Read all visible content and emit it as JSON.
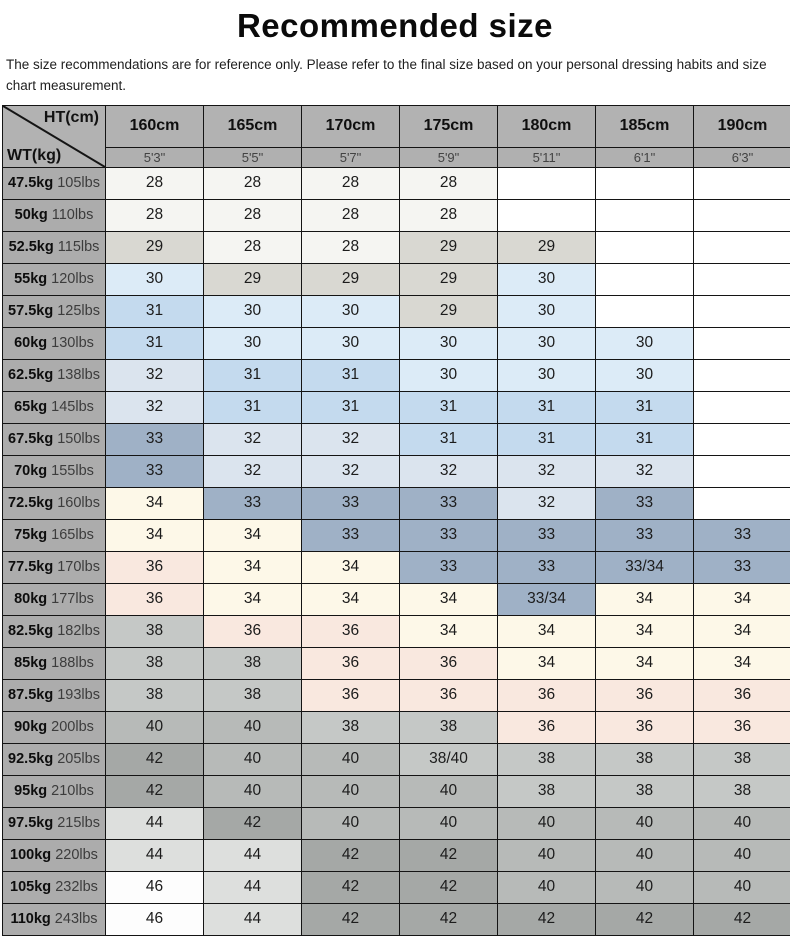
{
  "page": {
    "title": "Recommended size",
    "subtitle": "The size recommendations are for reference only. Please refer to the final size based on your personal dressing habits and size chart measurement."
  },
  "table": {
    "corner": {
      "top_label": "HT(cm)",
      "bottom_label": "WT(kg)"
    },
    "columns": [
      {
        "cm": "160cm",
        "ft": "5'3\""
      },
      {
        "cm": "165cm",
        "ft": "5'5\""
      },
      {
        "cm": "170cm",
        "ft": "5'7\""
      },
      {
        "cm": "175cm",
        "ft": "5'9\""
      },
      {
        "cm": "180cm",
        "ft": "5'11\""
      },
      {
        "cm": "185cm",
        "ft": "6'1\""
      },
      {
        "cm": "190cm",
        "ft": "6'3\""
      }
    ],
    "rows": [
      {
        "kg": "47.5kg",
        "lbs": "105lbs",
        "values": [
          "28",
          "28",
          "28",
          "28",
          "",
          "",
          ""
        ]
      },
      {
        "kg": "50kg",
        "lbs": "110lbs",
        "values": [
          "28",
          "28",
          "28",
          "28",
          "",
          "",
          ""
        ]
      },
      {
        "kg": "52.5kg",
        "lbs": "115lbs",
        "values": [
          "29",
          "28",
          "28",
          "29",
          "29",
          "",
          ""
        ]
      },
      {
        "kg": "55kg",
        "lbs": "120lbs",
        "values": [
          "30",
          "29",
          "29",
          "29",
          "30",
          "",
          ""
        ]
      },
      {
        "kg": "57.5kg",
        "lbs": "125lbs",
        "values": [
          "31",
          "30",
          "30",
          "29",
          "30",
          "",
          ""
        ]
      },
      {
        "kg": "60kg",
        "lbs": "130lbs",
        "values": [
          "31",
          "30",
          "30",
          "30",
          "30",
          "30",
          ""
        ]
      },
      {
        "kg": "62.5kg",
        "lbs": "138lbs",
        "values": [
          "32",
          "31",
          "31",
          "30",
          "30",
          "30",
          ""
        ]
      },
      {
        "kg": "65kg",
        "lbs": "145lbs",
        "values": [
          "32",
          "31",
          "31",
          "31",
          "31",
          "31",
          ""
        ]
      },
      {
        "kg": "67.5kg",
        "lbs": "150lbs",
        "values": [
          "33",
          "32",
          "32",
          "31",
          "31",
          "31",
          ""
        ]
      },
      {
        "kg": "70kg",
        "lbs": "155lbs",
        "values": [
          "33",
          "32",
          "32",
          "32",
          "32",
          "32",
          ""
        ]
      },
      {
        "kg": "72.5kg",
        "lbs": "160lbs",
        "values": [
          "34",
          "33",
          "33",
          "33",
          "32",
          "33",
          ""
        ]
      },
      {
        "kg": "75kg",
        "lbs": "165lbs",
        "values": [
          "34",
          "34",
          "33",
          "33",
          "33",
          "33",
          "33"
        ]
      },
      {
        "kg": "77.5kg",
        "lbs": "170lbs",
        "values": [
          "36",
          "34",
          "34",
          "33",
          "33",
          "33/34",
          "33"
        ]
      },
      {
        "kg": "80kg",
        "lbs": "177lbs",
        "values": [
          "36",
          "34",
          "34",
          "34",
          "33/34",
          "34",
          "34"
        ]
      },
      {
        "kg": "82.5kg",
        "lbs": "182lbs",
        "values": [
          "38",
          "36",
          "36",
          "34",
          "34",
          "34",
          "34"
        ]
      },
      {
        "kg": "85kg",
        "lbs": "188lbs",
        "values": [
          "38",
          "38",
          "36",
          "36",
          "34",
          "34",
          "34"
        ]
      },
      {
        "kg": "87.5kg",
        "lbs": "193lbs",
        "values": [
          "38",
          "38",
          "36",
          "36",
          "36",
          "36",
          "36"
        ]
      },
      {
        "kg": "90kg",
        "lbs": "200lbs",
        "values": [
          "40",
          "40",
          "38",
          "38",
          "36",
          "36",
          "36"
        ]
      },
      {
        "kg": "92.5kg",
        "lbs": "205lbs",
        "values": [
          "42",
          "40",
          "40",
          "38/40",
          "38",
          "38",
          "38"
        ]
      },
      {
        "kg": "95kg",
        "lbs": "210lbs",
        "values": [
          "42",
          "40",
          "40",
          "40",
          "38",
          "38",
          "38"
        ]
      },
      {
        "kg": "97.5kg",
        "lbs": "215lbs",
        "values": [
          "44",
          "42",
          "40",
          "40",
          "40",
          "40",
          "40"
        ]
      },
      {
        "kg": "100kg",
        "lbs": "220lbs",
        "values": [
          "44",
          "44",
          "42",
          "42",
          "40",
          "40",
          "40"
        ]
      },
      {
        "kg": "105kg",
        "lbs": "232lbs",
        "values": [
          "46",
          "44",
          "42",
          "42",
          "40",
          "40",
          "40"
        ]
      },
      {
        "kg": "110kg",
        "lbs": "243lbs",
        "values": [
          "46",
          "44",
          "42",
          "42",
          "42",
          "42",
          "42"
        ]
      }
    ],
    "value_colors": {
      "": "#ffffff",
      "28": "#f5f5f2",
      "29": "#d9d8d2",
      "30": "#dcebf7",
      "31": "#c4daee",
      "32": "#dbe4ee",
      "33": "#9fb1c6",
      "33/34": "#9fb1c6",
      "34": "#fdf8e8",
      "36": "#f9e8df",
      "38": "#c5c8c6",
      "38/40": "#c5c8c6",
      "40": "#b7bab8",
      "42": "#a5a8a6",
      "44": "#dddfdd",
      "46": "#fdfdfd"
    },
    "styles": {
      "header_bg": "#b2b2b2",
      "label_bg": "#acacac",
      "border_color": "#141414"
    }
  }
}
